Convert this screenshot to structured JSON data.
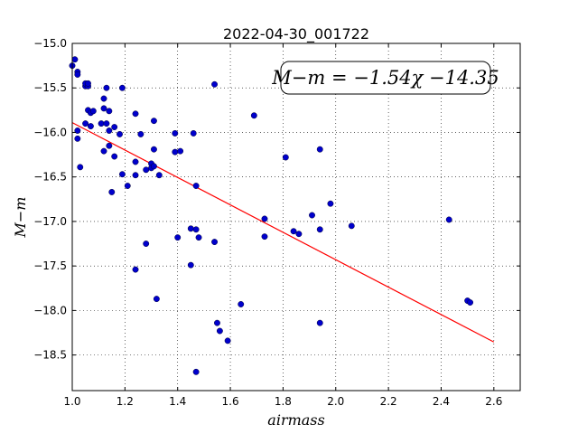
{
  "chart_data": {
    "type": "scatter",
    "title": "2022-04-30_001722",
    "xlabel": "airmass",
    "ylabel": "M−m",
    "xlim": [
      1.0,
      2.7
    ],
    "ylim": [
      -15.0,
      -18.9
    ],
    "y_inverted": true,
    "grid": true,
    "xticks": [
      1.0,
      1.2,
      1.4,
      1.6,
      1.8,
      2.0,
      2.2,
      2.4,
      2.6
    ],
    "xtick_labels": [
      "1.0",
      "1.2",
      "1.4",
      "1.6",
      "1.8",
      "2.0",
      "2.2",
      "2.4",
      "2.6"
    ],
    "yticks": [
      -15.0,
      -15.5,
      -16.0,
      -16.5,
      -17.0,
      -17.5,
      -18.0,
      -18.5
    ],
    "ytick_labels": [
      "−15.0",
      "−15.5",
      "−16.0",
      "−16.5",
      "−17.0",
      "−17.5",
      "−18.0",
      "−18.5"
    ],
    "annotation": "M−m = −1.54χ −14.35",
    "fit": {
      "slope": -1.54,
      "intercept": -14.35,
      "x_range": [
        1.0,
        2.6
      ],
      "color": "#ff0000"
    },
    "marker_color": "#0000cc",
    "points": [
      [
        1.0,
        -15.25
      ],
      [
        1.01,
        -15.18
      ],
      [
        1.02,
        -15.32
      ],
      [
        1.02,
        -15.35
      ],
      [
        1.02,
        -16.07
      ],
      [
        1.02,
        -15.98
      ],
      [
        1.03,
        -16.39
      ],
      [
        1.05,
        -15.48
      ],
      [
        1.05,
        -15.45
      ],
      [
        1.06,
        -15.48
      ],
      [
        1.06,
        -15.45
      ],
      [
        1.05,
        -15.9
      ],
      [
        1.06,
        -15.75
      ],
      [
        1.07,
        -15.78
      ],
      [
        1.08,
        -15.76
      ],
      [
        1.07,
        -15.93
      ],
      [
        1.11,
        -15.9
      ],
      [
        1.12,
        -15.73
      ],
      [
        1.12,
        -15.62
      ],
      [
        1.13,
        -15.5
      ],
      [
        1.13,
        -15.9
      ],
      [
        1.14,
        -15.76
      ],
      [
        1.14,
        -15.98
      ],
      [
        1.16,
        -15.94
      ],
      [
        1.12,
        -16.21
      ],
      [
        1.14,
        -16.15
      ],
      [
        1.16,
        -16.27
      ],
      [
        1.18,
        -16.02
      ],
      [
        1.19,
        -15.5
      ],
      [
        1.19,
        -16.47
      ],
      [
        1.15,
        -16.67
      ],
      [
        1.21,
        -16.6
      ],
      [
        1.24,
        -15.79
      ],
      [
        1.26,
        -16.02
      ],
      [
        1.24,
        -16.33
      ],
      [
        1.24,
        -16.48
      ],
      [
        1.28,
        -16.42
      ],
      [
        1.3,
        -16.35
      ],
      [
        1.3,
        -16.4
      ],
      [
        1.31,
        -16.38
      ],
      [
        1.31,
        -16.19
      ],
      [
        1.31,
        -15.87
      ],
      [
        1.33,
        -16.48
      ],
      [
        1.28,
        -17.25
      ],
      [
        1.24,
        -17.54
      ],
      [
        1.32,
        -17.87
      ],
      [
        1.39,
        -16.01
      ],
      [
        1.39,
        -16.22
      ],
      [
        1.41,
        -16.21
      ],
      [
        1.4,
        -17.18
      ],
      [
        1.45,
        -17.08
      ],
      [
        1.47,
        -17.09
      ],
      [
        1.48,
        -17.18
      ],
      [
        1.46,
        -16.01
      ],
      [
        1.47,
        -16.6
      ],
      [
        1.45,
        -17.49
      ],
      [
        1.54,
        -15.46
      ],
      [
        1.54,
        -17.23
      ],
      [
        1.55,
        -18.14
      ],
      [
        1.56,
        -18.23
      ],
      [
        1.47,
        -18.69
      ],
      [
        1.59,
        -18.34
      ],
      [
        1.64,
        -17.93
      ],
      [
        1.69,
        -15.81
      ],
      [
        1.73,
        -16.97
      ],
      [
        1.73,
        -17.17
      ],
      [
        1.81,
        -16.28
      ],
      [
        1.84,
        -17.11
      ],
      [
        1.86,
        -17.14
      ],
      [
        1.91,
        -16.93
      ],
      [
        1.94,
        -16.19
      ],
      [
        1.94,
        -17.09
      ],
      [
        1.94,
        -18.14
      ],
      [
        1.98,
        -16.8
      ],
      [
        2.06,
        -17.05
      ],
      [
        2.43,
        -16.98
      ],
      [
        2.5,
        -17.89
      ],
      [
        2.51,
        -17.91
      ]
    ]
  }
}
